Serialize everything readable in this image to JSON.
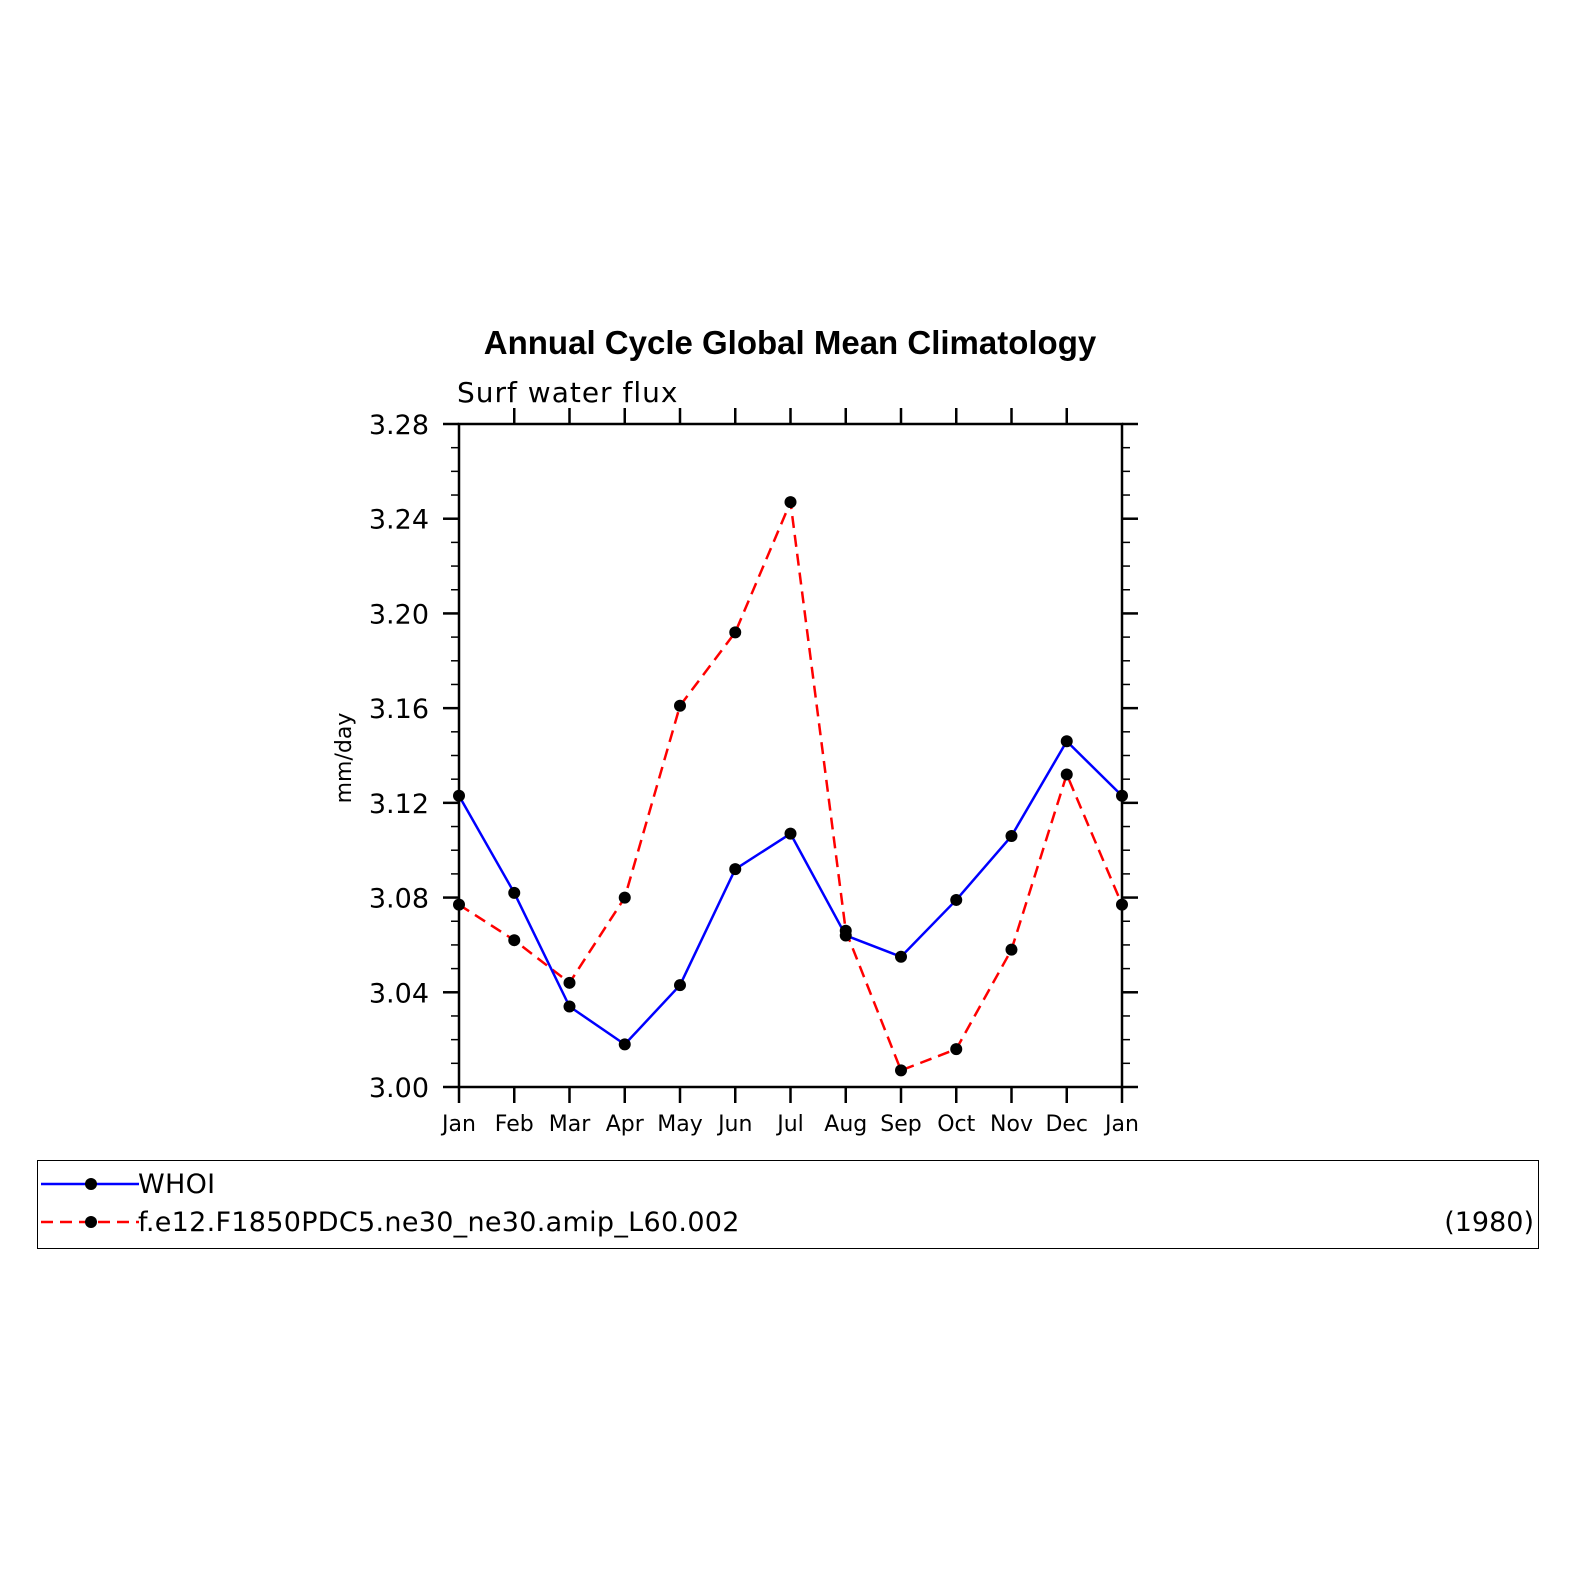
{
  "chart_data": {
    "type": "line",
    "title": "Annual Cycle Global Mean Climatology",
    "subtitle": "Surf water flux",
    "ylabel": "mm/day",
    "xlabel": "",
    "categories": [
      "Jan",
      "Feb",
      "Mar",
      "Apr",
      "May",
      "Jun",
      "Jul",
      "Aug",
      "Sep",
      "Oct",
      "Nov",
      "Dec",
      "Jan"
    ],
    "ylim": [
      3.0,
      3.28
    ],
    "yticks": [
      "3.00",
      "3.04",
      "3.08",
      "3.12",
      "3.16",
      "3.20",
      "3.24",
      "3.28"
    ],
    "grid": false,
    "legend_position": "bottom",
    "series": [
      {
        "name": "WHOI",
        "color": "#0000ff",
        "style": "solid",
        "values": [
          3.123,
          3.082,
          3.034,
          3.018,
          3.043,
          3.092,
          3.107,
          3.064,
          3.055,
          3.079,
          3.106,
          3.146,
          3.123
        ]
      },
      {
        "name": "f.e12.F1850PDC5.ne30_ne30.amip_L60.002",
        "color": "#ff0000",
        "style": "dashed",
        "years": "(1980)",
        "values": [
          3.077,
          3.062,
          3.044,
          3.08,
          3.161,
          3.192,
          3.247,
          3.066,
          3.007,
          3.016,
          3.058,
          3.132,
          3.077
        ]
      }
    ]
  }
}
